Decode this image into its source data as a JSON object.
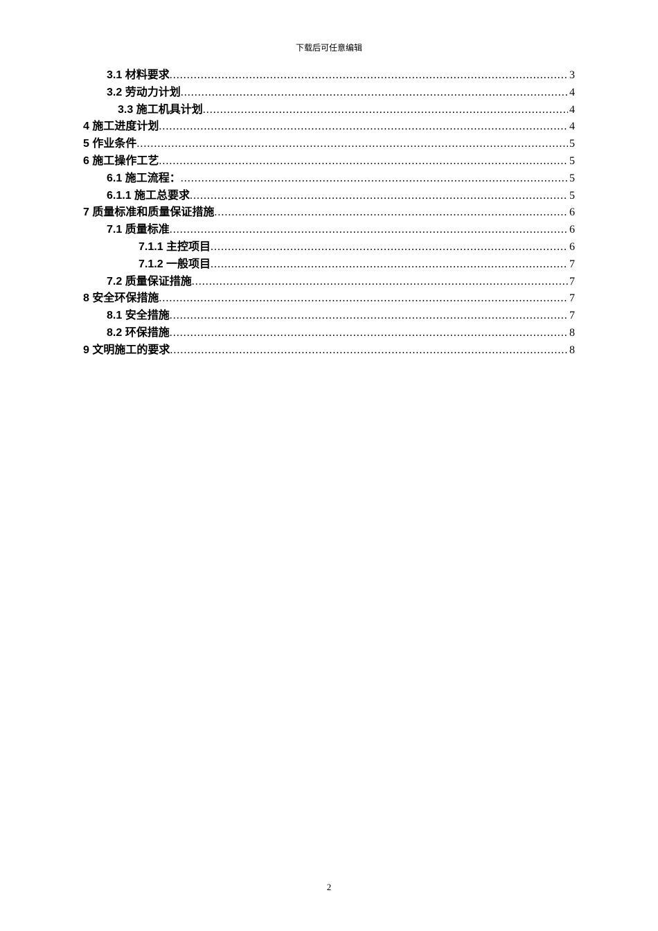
{
  "header_note": "下载后可任意编辑",
  "page_number": "2",
  "toc": [
    {
      "label": "3.1 材料要求",
      "page": "3",
      "indent": 1
    },
    {
      "label": "3.2 劳动力计划",
      "page": "4",
      "indent": 1
    },
    {
      "label": "3.3  施工机具计划",
      "page": "4",
      "indent": 2
    },
    {
      "label": "4 施工进度计划",
      "page": "4",
      "indent": 0
    },
    {
      "label": "5 作业条件",
      "page": "5",
      "indent": 0
    },
    {
      "label": "6 施工操作工艺",
      "page": "5",
      "indent": 0
    },
    {
      "label": "6.1 施工流程：",
      "page": "5",
      "indent": 1
    },
    {
      "label": "6.1.1 施工总要求",
      "page": "5",
      "indent": 1
    },
    {
      "label": "7 质量标准和质量保证措施",
      "page": "6",
      "indent": 0
    },
    {
      "label": "7.1 质量标准",
      "page": "6",
      "indent": 1
    },
    {
      "label": "7.1.1 主控项目",
      "page": "6",
      "indent": 3
    },
    {
      "label": "7.1.2 一般项目",
      "page": "7",
      "indent": 3
    },
    {
      "label": "7.2 质量保证措施",
      "page": "7",
      "indent": 1
    },
    {
      "label": "8 安全环保措施",
      "page": "7",
      "indent": 0
    },
    {
      "label": "8.1 安全措施",
      "page": "7",
      "indent": 1
    },
    {
      "label": "8.2 环保措施",
      "page": "8",
      "indent": 1
    },
    {
      "label": "9 文明施工的要求",
      "page": "8",
      "indent": 0
    }
  ]
}
